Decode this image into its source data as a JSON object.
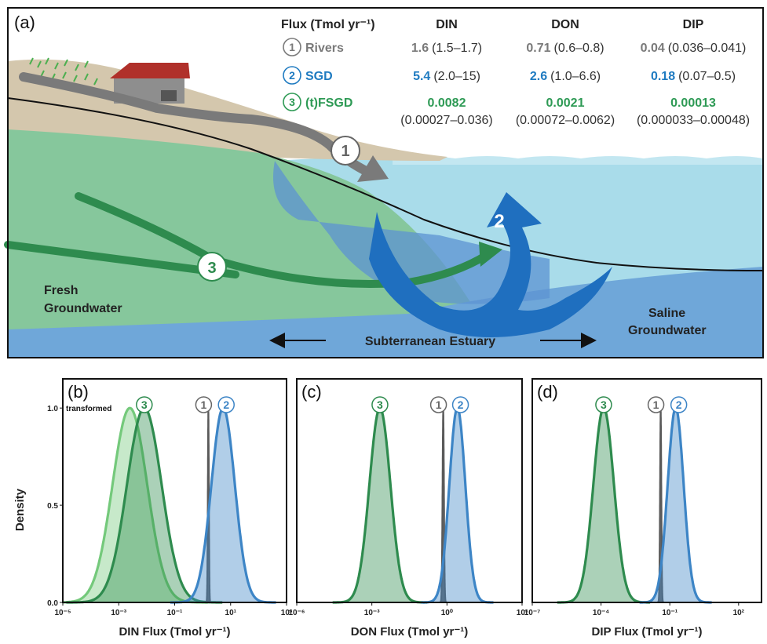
{
  "panel_a": {
    "label": "(a)",
    "table": {
      "header": {
        "flux": "Flux (Tmol yr⁻¹)",
        "din": "DIN",
        "don": "DON",
        "dip": "DIP"
      },
      "rows": [
        {
          "num": "1",
          "name": "Rivers",
          "color": "#7a7a7a",
          "din_main": "1.6",
          "din_range": "(1.5–1.7)",
          "don_main": "0.71",
          "don_range": "(0.6–0.8)",
          "dip_main": "0.04",
          "dip_range": "(0.036–0.041)"
        },
        {
          "num": "2",
          "name": "SGD",
          "color": "#1f7bc1",
          "din_main": "5.4",
          "din_range": "(2.0–15)",
          "don_main": "2.6",
          "don_range": "(1.0–6.6)",
          "dip_main": "0.18",
          "dip_range": "(0.07–0.5)"
        },
        {
          "num": "3",
          "name": "(t)FSGD",
          "color": "#2e9a55",
          "din_main": "0.0082",
          "din_range": "(0.00027–0.036)",
          "don_main": "0.0021",
          "don_range": "(0.00072–0.0062)",
          "dip_main": "0.00013",
          "dip_range": "(0.000033–0.00048)"
        }
      ]
    },
    "labels": {
      "fresh": [
        "Fresh",
        "Groundwater"
      ],
      "saline": [
        "Saline",
        "Groundwater"
      ],
      "estuary": "Subterranean Estuary",
      "m1": "1",
      "m2": "2",
      "m3": "3"
    }
  },
  "colors": {
    "river": "#5a5a5a",
    "sgd": "#3d85c6",
    "fsgd": "#2e8b4e",
    "transformed": "#74c97b"
  },
  "chart_data": [
    {
      "panel": "(b)",
      "type": "area",
      "xlabel": "DIN Flux (Tmol yr⁻¹)",
      "ylabel": "Density",
      "x_scale": "log",
      "xlim": [
        -5,
        3
      ],
      "ylim": [
        0,
        1.15
      ],
      "xticks": [
        "10⁻⁵",
        "10⁻³",
        "10⁻¹",
        "10¹",
        "10³"
      ],
      "xtick_exp": [
        -5,
        -3,
        -1,
        1,
        3
      ],
      "yticks": [
        "0.0",
        "0.5",
        "1.0"
      ],
      "ytick_vals": [
        0,
        0.5,
        1.0
      ],
      "annotation": "transformed",
      "series": [
        {
          "num": "3",
          "key": "transformed",
          "peak_x": 0.0025,
          "sigma_dex": 0.62
        },
        {
          "num": "3",
          "key": "fsgd",
          "peak_x": 0.0082,
          "sigma_dex": 0.62
        },
        {
          "num": "1",
          "key": "river",
          "peak_x": 1.6,
          "sigma_dex": 0.02
        },
        {
          "num": "2",
          "key": "sgd",
          "peak_x": 5.4,
          "sigma_dex": 0.42
        }
      ]
    },
    {
      "panel": "(c)",
      "type": "area",
      "xlabel": "DON Flux (Tmol yr⁻¹)",
      "ylabel": "",
      "x_scale": "log",
      "xlim": [
        -6,
        3
      ],
      "ylim": [
        0,
        1.15
      ],
      "xticks": [
        "10⁻⁶",
        "10⁻³",
        "10⁰",
        "10³"
      ],
      "xtick_exp": [
        -6,
        -3,
        0,
        3
      ],
      "series": [
        {
          "num": "3",
          "key": "fsgd",
          "peak_x": 0.0021,
          "sigma_dex": 0.42
        },
        {
          "num": "1",
          "key": "river",
          "peak_x": 0.71,
          "sigma_dex": 0.03
        },
        {
          "num": "2",
          "key": "sgd",
          "peak_x": 2.6,
          "sigma_dex": 0.32
        }
      ]
    },
    {
      "panel": "(d)",
      "type": "area",
      "xlabel": "DIP Flux (Tmol yr⁻¹)",
      "ylabel": "",
      "x_scale": "log",
      "xlim": [
        -7,
        3
      ],
      "ylim": [
        0,
        1.15
      ],
      "xticks": [
        "10⁻⁷",
        "10⁻⁴",
        "10⁻¹",
        "10²"
      ],
      "xtick_exp": [
        -7,
        -4,
        -1,
        2
      ],
      "series": [
        {
          "num": "3",
          "key": "fsgd",
          "peak_x": 0.00013,
          "sigma_dex": 0.45
        },
        {
          "num": "1",
          "key": "river",
          "peak_x": 0.04,
          "sigma_dex": 0.03
        },
        {
          "num": "2",
          "key": "sgd",
          "peak_x": 0.18,
          "sigma_dex": 0.35
        }
      ]
    }
  ]
}
